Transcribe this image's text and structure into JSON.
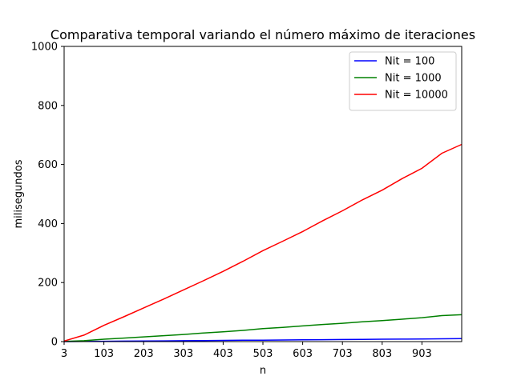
{
  "chart_data": {
    "type": "line",
    "title": "Comparativa temporal variando el número máximo de iteraciones",
    "xlabel": "n",
    "ylabel": "milisegundos",
    "xlim": [
      3,
      1003
    ],
    "ylim": [
      0,
      1000
    ],
    "xticks": [
      "3",
      "103",
      "203",
      "303",
      "403",
      "503",
      "603",
      "703",
      "803",
      "903"
    ],
    "yticks": [
      "0",
      "200",
      "400",
      "600",
      "800",
      "1000"
    ],
    "legend_position": "top-right",
    "grid": false,
    "x": [
      3,
      53,
      103,
      153,
      203,
      253,
      303,
      353,
      403,
      453,
      503,
      553,
      603,
      653,
      703,
      753,
      803,
      853,
      903,
      953,
      1003
    ],
    "series": [
      {
        "name": "Nit = 100",
        "color": "#0000ff",
        "values": [
          0.1,
          0.5,
          1.0,
          1.5,
          2.0,
          2.5,
          3.0,
          3.5,
          4.0,
          4.5,
          5.0,
          5.5,
          6.0,
          6.5,
          7.0,
          7.5,
          8.0,
          8.5,
          9.0,
          9.5,
          10.0
        ]
      },
      {
        "name": "Nit = 1000",
        "color": "#008000",
        "values": [
          0.5,
          3,
          8,
          12,
          16,
          20,
          24,
          29,
          33,
          38,
          44,
          48,
          53,
          58,
          62,
          67,
          71,
          76,
          81,
          88,
          91
        ]
      },
      {
        "name": "Nit = 10000",
        "color": "#ff0000",
        "values": [
          2,
          22,
          55,
          84,
          114,
          144,
          175,
          206,
          238,
          272,
          308,
          340,
          373,
          409,
          443,
          480,
          513,
          552,
          587,
          638,
          668
        ]
      }
    ]
  }
}
